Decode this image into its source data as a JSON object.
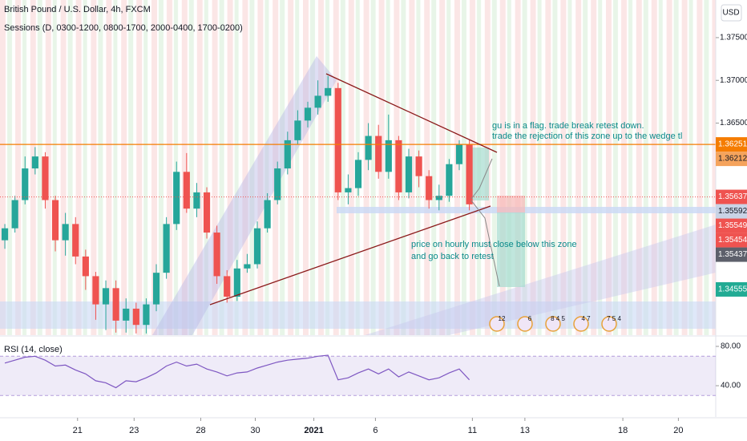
{
  "chart_data": [
    {
      "type": "candlestick",
      "title": "British Pound / U.S. Dollar, 4h, FXCM",
      "subtitle": "Sessions (D, 0300-1200, 0800-1700, 2000-0400, 1700-0200)",
      "currency": "USD",
      "xlim": [
        -0.48,
        70.4
      ],
      "xticks": [
        {
          "value": 7.2,
          "label": "21"
        },
        {
          "value": 12.8,
          "label": "23"
        },
        {
          "value": 19.4,
          "label": "28"
        },
        {
          "value": 24.8,
          "label": "30"
        },
        {
          "value": 30.6,
          "label": "2021"
        },
        {
          "value": 36.7,
          "label": "6"
        },
        {
          "value": 46.3,
          "label": "11"
        },
        {
          "value": 51.5,
          "label": "13"
        },
        {
          "value": 61.2,
          "label": "18"
        },
        {
          "value": 66.7,
          "label": "20"
        }
      ],
      "ylim": [
        1.3402,
        1.3794
      ],
      "yticks": [
        {
          "value": 1.375,
          "label": "1.37500"
        },
        {
          "value": 1.37,
          "label": "1.37000"
        },
        {
          "value": 1.365,
          "label": "1.36500"
        }
      ],
      "up_color": "#26a69a",
      "down_color": "#ef5350",
      "series": [
        {
          "open": [
            1.3513,
            1.3527,
            1.356,
            1.3597,
            1.3611,
            1.356,
            1.3513,
            1.3532,
            1.3494,
            1.3471,
            1.3438,
            1.3457,
            1.3419,
            1.3433,
            1.3414,
            1.3438,
            1.3475,
            1.3532,
            1.3593,
            1.355,
            1.3569,
            1.3522,
            1.3471,
            1.3447,
            1.348,
            1.3485,
            1.3527,
            1.356,
            1.3597,
            1.363,
            1.3653,
            1.3668,
            1.3682,
            1.3691,
            1.3569,
            1.3574,
            1.3607,
            1.3635,
            1.3593,
            1.363,
            1.3569,
            1.3611,
            1.3588,
            1.356,
            1.3565,
            1.3602,
            1.3625
          ],
          "high": [
            1.3532,
            1.3565,
            1.3611,
            1.3622,
            1.3616,
            1.3565,
            1.3545,
            1.354,
            1.3502,
            1.3476,
            1.3466,
            1.3466,
            1.3445,
            1.344,
            1.3445,
            1.3485,
            1.354,
            1.3605,
            1.3615,
            1.358,
            1.3575,
            1.353,
            1.3478,
            1.349,
            1.3497,
            1.3535,
            1.3568,
            1.3605,
            1.364,
            1.3665,
            1.3675,
            1.37,
            1.3705,
            1.3697,
            1.359,
            1.3616,
            1.365,
            1.3648,
            1.366,
            1.3635,
            1.362,
            1.3618,
            1.3595,
            1.3578,
            1.3608,
            1.363,
            1.363
          ],
          "low": [
            1.3503,
            1.3522,
            1.3555,
            1.359,
            1.355,
            1.35,
            1.3495,
            1.3485,
            1.3455,
            1.342,
            1.3408,
            1.3405,
            1.3405,
            1.3404,
            1.3404,
            1.343,
            1.3468,
            1.3525,
            1.3545,
            1.354,
            1.3515,
            1.3462,
            1.344,
            1.3442,
            1.3475,
            1.348,
            1.3522,
            1.3555,
            1.359,
            1.3625,
            1.3645,
            1.366,
            1.3675,
            1.356,
            1.3555,
            1.3565,
            1.3595,
            1.3585,
            1.3585,
            1.356,
            1.3562,
            1.3575,
            1.355,
            1.3548,
            1.3558,
            1.3595,
            1.3548
          ],
          "close": [
            1.3527,
            1.356,
            1.3597,
            1.3611,
            1.356,
            1.3513,
            1.3532,
            1.3494,
            1.3471,
            1.3438,
            1.3457,
            1.3419,
            1.3433,
            1.3414,
            1.3438,
            1.3475,
            1.3532,
            1.3593,
            1.355,
            1.3569,
            1.3522,
            1.3471,
            1.3447,
            1.348,
            1.3485,
            1.3527,
            1.356,
            1.3597,
            1.363,
            1.3653,
            1.3668,
            1.3682,
            1.3691,
            1.3569,
            1.3574,
            1.3607,
            1.3635,
            1.3593,
            1.363,
            1.3569,
            1.3611,
            1.3588,
            1.356,
            1.3565,
            1.3602,
            1.3625,
            1.3555
          ]
        }
      ],
      "price_labels": [
        1.36251,
        1.36212,
        1.35637,
        1.35592,
        1.35549,
        1.35454,
        1.35437,
        1.34555
      ],
      "price_label_colors": [
        "#f57c00",
        "#f5a35c",
        "#ef5350",
        "#c9d3e6",
        "#ef5350",
        "#ef5350",
        "#5d606b",
        "#22ab94"
      ],
      "annotations": [
        "gu is in a flag. trade break retest down.",
        "trade the rejection of this zone up to the wedge tl",
        "price on hourly must close below this zone",
        "and go back to retest"
      ],
      "events": [
        "12",
        "6",
        "8 4 5",
        "4 7",
        "7 5 4"
      ]
    },
    {
      "type": "line",
      "title": "RSI (14, close)",
      "color": "#7e57c2",
      "xlim": [
        -0.48,
        70.4
      ],
      "ylim": [
        8.2,
        89.8
      ],
      "yticks": [
        {
          "value": 80,
          "label": "80.00"
        },
        {
          "value": 40,
          "label": "40.00"
        }
      ],
      "bands": [
        70,
        30
      ],
      "values": [
        63,
        66,
        69,
        70,
        66,
        60,
        61,
        56,
        52,
        45,
        43,
        38,
        45,
        44,
        48,
        53,
        60,
        64,
        60,
        62,
        57,
        54,
        50,
        53,
        54,
        58,
        61,
        64,
        66,
        67,
        68,
        70,
        71,
        46,
        48,
        53,
        57,
        52,
        57,
        49,
        54,
        50,
        46,
        48,
        53,
        57,
        46
      ]
    }
  ]
}
